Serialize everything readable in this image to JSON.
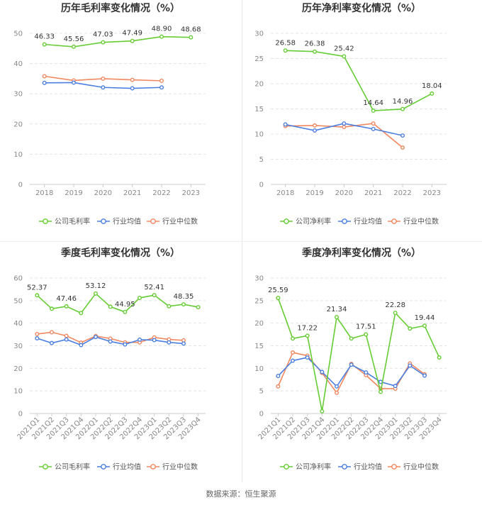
{
  "source_text": "数据来源：恒生聚源",
  "colors": {
    "company": "#66cc33",
    "avg": "#4a7fe0",
    "median": "#f0875f",
    "grid": "#e4e4e4",
    "axis": "#cccccc"
  },
  "chart_data": [
    {
      "type": "line",
      "title": "历年毛利率变化情况（%）",
      "categories": [
        "2018",
        "2019",
        "2020",
        "2021",
        "2022",
        "2023"
      ],
      "ylim": [
        0,
        50
      ],
      "yticks": [
        0,
        10,
        20,
        30,
        40,
        50
      ],
      "grid": true,
      "legend_position": "bottom",
      "series": [
        {
          "name": "公司毛利率",
          "values": [
            46.33,
            45.56,
            47.03,
            47.49,
            48.9,
            48.68
          ],
          "labels": [
            "46.33",
            "45.56",
            "47.03",
            "47.49",
            "48.90",
            "48.68"
          ]
        },
        {
          "name": "行业均值",
          "values": [
            33.6,
            33.7,
            32.1,
            31.8,
            32.1,
            null
          ]
        },
        {
          "name": "行业中位数",
          "values": [
            35.8,
            34.4,
            35.0,
            34.6,
            34.3,
            null
          ]
        }
      ]
    },
    {
      "type": "line",
      "title": "历年净利率变化情况（%）",
      "categories": [
        "2018",
        "2019",
        "2020",
        "2021",
        "2022",
        "2023"
      ],
      "ylim": [
        0,
        30
      ],
      "yticks": [
        0,
        5,
        10,
        15,
        20,
        25,
        30
      ],
      "grid": true,
      "legend_position": "bottom",
      "series": [
        {
          "name": "公司净利率",
          "values": [
            26.58,
            26.38,
            25.42,
            14.64,
            14.96,
            18.04
          ],
          "labels": [
            "26.58",
            "26.38",
            "25.42",
            "14.64",
            "14.96",
            "18.04"
          ]
        },
        {
          "name": "行业均值",
          "values": [
            11.9,
            10.7,
            12.1,
            11.0,
            9.7,
            null
          ]
        },
        {
          "name": "行业中位数",
          "values": [
            11.6,
            11.7,
            11.4,
            12.1,
            7.3,
            null
          ]
        }
      ]
    },
    {
      "type": "line",
      "title": "季度毛利率变化情况（%）",
      "categories": [
        "2021Q1",
        "2021Q2",
        "2021Q3",
        "2021Q4",
        "2022Q1",
        "2022Q2",
        "2022Q3",
        "2022Q4",
        "2023Q1",
        "2023Q2",
        "2023Q3",
        "2023Q4"
      ],
      "ylim": [
        0,
        60
      ],
      "yticks": [
        0,
        10,
        20,
        30,
        40,
        50,
        60
      ],
      "grid": true,
      "legend_position": "bottom",
      "series": [
        {
          "name": "公司毛利率",
          "values": [
            52.37,
            46.4,
            47.46,
            44.5,
            53.12,
            47.3,
            44.95,
            51.2,
            52.41,
            47.5,
            48.35,
            47.1
          ],
          "labels": [
            "52.37",
            "",
            "47.46",
            "",
            "53.12",
            "",
            "44.95",
            "",
            "52.41",
            "",
            "48.35",
            ""
          ]
        },
        {
          "name": "行业均值",
          "values": [
            33.3,
            31.2,
            32.8,
            30.3,
            33.9,
            31.9,
            30.6,
            32.7,
            32.5,
            31.5,
            31.0,
            null
          ]
        },
        {
          "name": "行业中位数",
          "values": [
            35.2,
            36.0,
            34.4,
            31.4,
            34.3,
            33.2,
            31.5,
            31.5,
            33.7,
            32.8,
            32.4,
            null
          ]
        }
      ]
    },
    {
      "type": "line",
      "title": "季度净利率变化情况（%）",
      "categories": [
        "2021Q1",
        "2021Q2",
        "2021Q3",
        "2021Q4",
        "2022Q1",
        "2022Q2",
        "2022Q3",
        "2022Q4",
        "2023Q1",
        "2023Q2",
        "2023Q3",
        "2023Q4"
      ],
      "ylim": [
        0,
        30
      ],
      "yticks": [
        0,
        5,
        10,
        15,
        20,
        25,
        30
      ],
      "grid": true,
      "legend_position": "bottom",
      "series": [
        {
          "name": "公司净利率",
          "values": [
            25.59,
            16.6,
            17.22,
            0.5,
            21.34,
            16.6,
            17.51,
            4.8,
            22.28,
            18.8,
            19.44,
            12.4
          ],
          "labels": [
            "25.59",
            "",
            "17.22",
            "",
            "21.34",
            "",
            "17.51",
            "",
            "22.28",
            "",
            "19.44",
            ""
          ]
        },
        {
          "name": "行业均值",
          "values": [
            8.3,
            11.7,
            12.4,
            9.2,
            6.0,
            10.8,
            9.1,
            7.0,
            6.1,
            10.6,
            8.4,
            null
          ]
        },
        {
          "name": "行业中位数",
          "values": [
            6.0,
            13.5,
            12.8,
            9.0,
            4.6,
            11.0,
            8.5,
            5.5,
            5.5,
            11.1,
            8.7,
            null
          ]
        }
      ]
    }
  ]
}
